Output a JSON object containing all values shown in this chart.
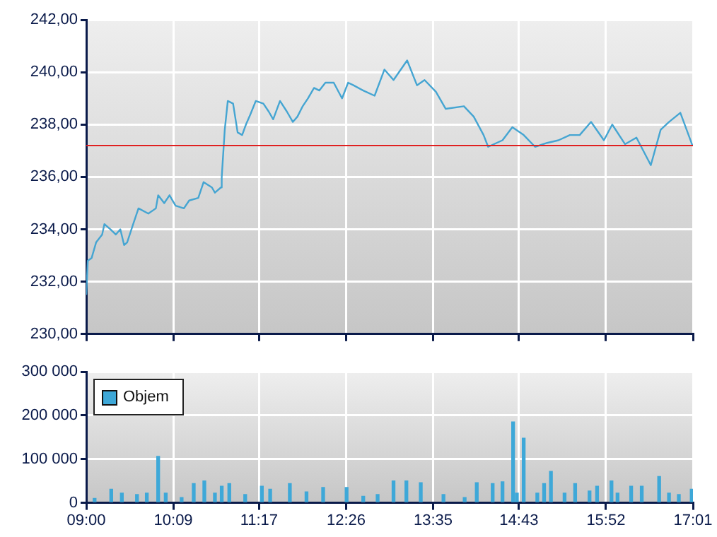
{
  "chart_data": [
    {
      "type": "line",
      "marker": "none",
      "grid": true,
      "tick_labels": "y",
      "xlim": [
        9,
        17.0167
      ],
      "xticks": [
        {
          "value": 9,
          "label": null
        },
        {
          "value": 10.15,
          "label": null
        },
        {
          "value": 11.2833,
          "label": null
        },
        {
          "value": 12.4333,
          "label": null
        },
        {
          "value": 13.5833,
          "label": null
        },
        {
          "value": 14.7167,
          "label": null
        },
        {
          "value": 15.8667,
          "label": null
        },
        {
          "value": 17.0167,
          "label": null
        }
      ],
      "ylim": [
        230,
        242
      ],
      "yticks": [
        {
          "value": 230,
          "label": "230,00"
        },
        {
          "value": 232,
          "label": "232,00"
        },
        {
          "value": 234,
          "label": "234,00"
        },
        {
          "value": 236,
          "label": "236,00"
        },
        {
          "value": 238,
          "label": "238,00"
        },
        {
          "value": 240,
          "label": "240,00"
        },
        {
          "value": 242,
          "label": "242,00"
        }
      ],
      "ref_lines": [
        {
          "axis": "y",
          "value": 237.2,
          "color": "#e02020"
        }
      ],
      "series": [
        {
          "color": "#45a5d2",
          "x": [
            9.0,
            9.02,
            9.07,
            9.13,
            9.21,
            9.24,
            9.32,
            9.39,
            9.45,
            9.5,
            9.54,
            9.62,
            9.69,
            9.82,
            9.92,
            9.95,
            10.03,
            10.1,
            10.18,
            10.29,
            10.36,
            10.48,
            10.55,
            10.66,
            10.7,
            10.78,
            10.79,
            10.83,
            10.87,
            10.94,
            11.0,
            11.06,
            11.11,
            11.17,
            11.24,
            11.34,
            11.41,
            11.47,
            11.56,
            11.65,
            11.73,
            11.79,
            11.86,
            11.93,
            12.01,
            12.08,
            12.16,
            12.27,
            12.38,
            12.46,
            12.53,
            12.66,
            12.81,
            12.94,
            13.06,
            13.24,
            13.37,
            13.47,
            13.62,
            13.75,
            13.99,
            14.12,
            14.25,
            14.31,
            14.5,
            14.63,
            14.78,
            14.93,
            15.09,
            15.24,
            15.39,
            15.52,
            15.67,
            15.84,
            15.95,
            16.12,
            16.27,
            16.46,
            16.59,
            16.7,
            16.85,
            17.01
          ],
          "values": [
            231.5,
            232.8,
            232.9,
            233.5,
            233.8,
            234.2,
            234.0,
            233.8,
            234.0,
            233.4,
            233.5,
            234.2,
            234.8,
            234.6,
            234.8,
            235.3,
            235.0,
            235.3,
            234.9,
            234.8,
            235.1,
            235.2,
            235.8,
            235.6,
            235.4,
            235.6,
            236.0,
            237.8,
            238.9,
            238.8,
            237.7,
            237.6,
            238.0,
            238.4,
            238.9,
            238.8,
            238.5,
            238.2,
            238.9,
            238.5,
            238.1,
            238.3,
            238.7,
            239.0,
            239.4,
            239.3,
            239.6,
            239.6,
            239.0,
            239.6,
            239.5,
            239.3,
            239.1,
            240.1,
            239.7,
            240.45,
            239.5,
            239.7,
            239.25,
            238.6,
            238.7,
            238.3,
            237.6,
            237.15,
            237.4,
            237.9,
            237.6,
            237.15,
            237.3,
            237.4,
            237.6,
            237.6,
            238.1,
            237.4,
            238.0,
            237.25,
            237.5,
            236.45,
            237.8,
            238.1,
            238.45,
            237.2
          ]
        }
      ]
    },
    {
      "type": "bar",
      "grid": true,
      "legend": "top left",
      "xlim": [
        9,
        17.0167
      ],
      "xticks": [
        {
          "value": 9,
          "label": "09:00"
        },
        {
          "value": 10.15,
          "label": "10:09"
        },
        {
          "value": 11.2833,
          "label": "11:17"
        },
        {
          "value": 12.4333,
          "label": "12:26"
        },
        {
          "value": 13.5833,
          "label": "13:35"
        },
        {
          "value": 14.7167,
          "label": "14:43"
        },
        {
          "value": 15.8667,
          "label": "15:52"
        },
        {
          "value": 17.0167,
          "label": "17:01"
        }
      ],
      "ylim": [
        0,
        300000
      ],
      "yticks": [
        {
          "value": 0,
          "label": "0"
        },
        {
          "value": 100000,
          "label": "100 000"
        },
        {
          "value": 200000,
          "label": "200 000"
        },
        {
          "value": 300000,
          "label": "300 000"
        }
      ],
      "x": [
        9.11,
        9.33,
        9.47,
        9.67,
        9.8,
        9.95,
        10.05,
        10.26,
        10.42,
        10.56,
        10.7,
        10.79,
        10.89,
        11.1,
        11.32,
        11.43,
        11.69,
        11.91,
        12.13,
        12.44,
        12.66,
        12.85,
        13.06,
        13.23,
        13.42,
        13.72,
        14.0,
        14.16,
        14.37,
        14.5,
        14.64,
        14.69,
        14.78,
        14.96,
        15.05,
        15.14,
        15.32,
        15.46,
        15.65,
        15.75,
        15.94,
        16.02,
        16.2,
        16.34,
        16.57,
        16.7,
        16.83,
        17.0
      ],
      "series": [
        {
          "name": "Objem",
          "color": "#3ea8d8",
          "values": [
            10000,
            31000,
            22000,
            19000,
            22000,
            106000,
            22000,
            12000,
            44000,
            50000,
            22000,
            38000,
            44000,
            19000,
            38000,
            31000,
            44000,
            25000,
            35000,
            35000,
            15000,
            19000,
            50000,
            50000,
            46000,
            19000,
            12000,
            46000,
            44000,
            48000,
            185000,
            22000,
            148000,
            22000,
            44000,
            72000,
            22000,
            44000,
            27000,
            38000,
            50000,
            22000,
            38000,
            38000,
            60000,
            22000,
            19000,
            31000
          ]
        }
      ]
    }
  ]
}
